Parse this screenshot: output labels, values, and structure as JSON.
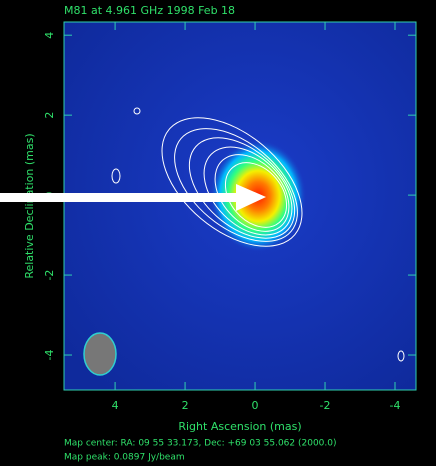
{
  "chart_data": {
    "type": "image",
    "title": "M81 at 4.961 GHz 1998 Feb 18",
    "x_label": "Right Ascension  (mas)",
    "y_label": "Relative Declination  (mas)",
    "xlim": [
      5.46,
      -4.6
    ],
    "ylim": [
      -4.875,
      4.33
    ],
    "xticks": [
      4,
      2,
      0,
      -2,
      -4
    ],
    "yticks": [
      -4,
      -2,
      0,
      2,
      4
    ],
    "annotations": [
      "Map center:  RA: 09 55 33.173,   Dec: +69 03 55.062 (2000.0)",
      "Map peak: 0.0897 Jy/beam"
    ]
  }
}
